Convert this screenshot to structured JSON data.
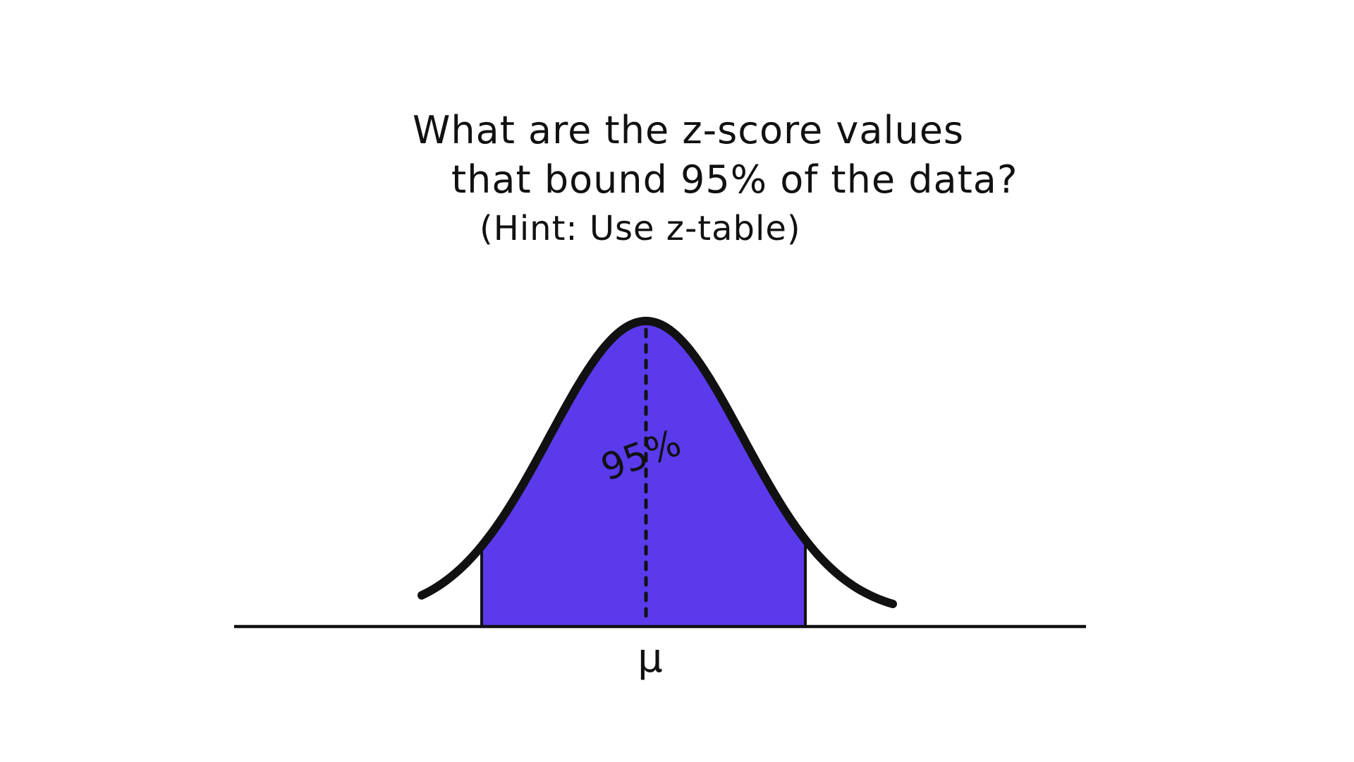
{
  "question": {
    "line1": "What are the z-score values",
    "line2": "that bound 95% of the data?",
    "line3": "(Hint: Use z-table)"
  },
  "diagram": {
    "shaded_percent_label": "95%",
    "center_label": "μ",
    "shaded_fraction": 0.95,
    "colors": {
      "shade": "#5B3AEC",
      "curve": "#111111",
      "background": "#ffffff"
    }
  }
}
